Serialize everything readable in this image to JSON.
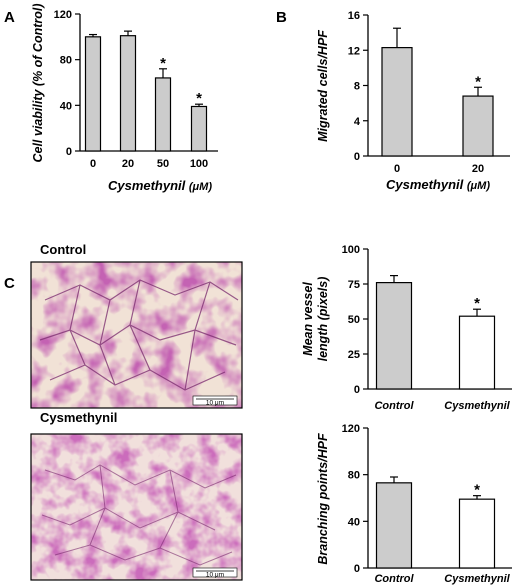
{
  "figure": {
    "panel_a": "A",
    "panel_b": "B",
    "panel_c": "C"
  },
  "chart_data": [
    {
      "id": "A",
      "type": "bar",
      "categories": [
        "0",
        "20",
        "50",
        "100"
      ],
      "values": [
        100,
        101,
        64,
        39
      ],
      "errors": [
        2,
        4,
        8,
        2
      ],
      "significant": [
        false,
        false,
        true,
        true
      ],
      "ylabel": "Cell viability (% of Control)",
      "xlabel": "Cysmethynil",
      "xunit": "(μM)",
      "ylim": [
        0,
        120
      ],
      "yticks": [
        0,
        40,
        80,
        120
      ],
      "bar_color": "#cccccc"
    },
    {
      "id": "B",
      "type": "bar",
      "categories": [
        "0",
        "20"
      ],
      "values": [
        12.3,
        6.8
      ],
      "errors": [
        2.2,
        1.0
      ],
      "significant": [
        false,
        true
      ],
      "ylabel": "Migrated cells/HPF",
      "xlabel": "Cysmethynil",
      "xunit": "(μM)",
      "ylim": [
        0,
        16
      ],
      "yticks": [
        0,
        4,
        8,
        12,
        16
      ],
      "bar_color": "#cccccc"
    },
    {
      "id": "C1",
      "type": "bar",
      "categories": [
        "Control",
        "Cysmethynil"
      ],
      "values": [
        76,
        52
      ],
      "errors": [
        5,
        5
      ],
      "significant": [
        false,
        true
      ],
      "ylabel": "Mean vessel length (pixels)",
      "ylabel_lines": [
        "Mean vessel",
        "length (pixels)"
      ],
      "ylim": [
        0,
        100
      ],
      "yticks": [
        0,
        25,
        50,
        75,
        100
      ],
      "bar_colors": [
        "#cccccc",
        "#ffffff"
      ]
    },
    {
      "id": "C2",
      "type": "bar",
      "categories": [
        "Control",
        "Cysmethynil"
      ],
      "values": [
        73,
        59
      ],
      "errors": [
        5,
        3
      ],
      "significant": [
        false,
        true
      ],
      "ylabel": "Branching points/HPF",
      "ylim": [
        0,
        120
      ],
      "yticks": [
        0,
        40,
        80,
        120
      ],
      "bar_colors": [
        "#cccccc",
        "#ffffff"
      ]
    }
  ],
  "images": [
    {
      "title": "Control",
      "scale_bar": "10 μm"
    },
    {
      "title": "Cysmethynil",
      "scale_bar": "10 μm"
    }
  ],
  "significance_mark": "*"
}
